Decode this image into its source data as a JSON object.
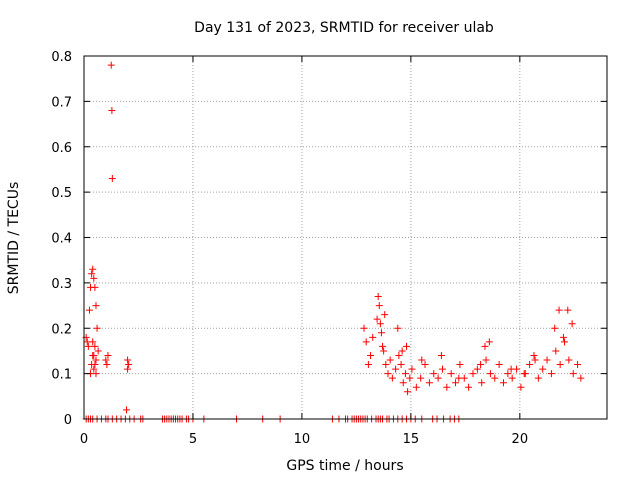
{
  "chart_data": {
    "type": "scatter",
    "title": "Day 131 of 2023, SRMTID for receiver ulab",
    "xlabel": "GPS time / hours",
    "ylabel": "SRMTID / TECUs",
    "xlim": [
      0,
      24
    ],
    "ylim": [
      0,
      0.8
    ],
    "xticks": [
      0,
      5,
      10,
      15,
      20
    ],
    "yticks": [
      0,
      0.1,
      0.2,
      0.3,
      0.4,
      0.5,
      0.6,
      0.7,
      0.8
    ],
    "grid": true,
    "marker": "+",
    "series": [
      {
        "name": "SRMTID",
        "color": "#ff0000",
        "x": [
          0.1,
          0.15,
          0.2,
          0.25,
          0.3,
          0.35,
          0.4,
          0.45,
          0.5,
          0.55,
          0.6,
          0.65,
          0.3,
          0.35,
          0.4,
          0.45,
          0.5,
          0.55,
          0.4,
          0.45,
          0.5,
          0.55,
          1.0,
          1.05,
          1.1,
          1.25,
          1.28,
          1.3,
          1.95,
          2.0,
          2.05,
          2.0,
          0.1,
          0.2,
          0.3,
          0.4,
          0.6,
          0.8,
          1.0,
          1.1,
          1.3,
          1.5,
          1.7,
          1.9,
          2.1,
          2.3,
          2.6,
          2.7,
          3.6,
          3.7,
          3.8,
          3.9,
          4.0,
          4.1,
          4.2,
          4.3,
          4.4,
          4.5,
          4.7,
          4.8,
          5.0,
          5.5,
          7.0,
          8.2,
          9.0,
          11.4,
          11.7,
          12.0,
          12.1,
          12.3,
          12.4,
          12.5,
          12.6,
          12.7,
          12.8,
          12.9,
          13.0,
          13.2,
          13.4,
          13.5,
          13.6,
          13.7,
          13.9,
          14.0,
          14.2,
          14.4,
          14.6,
          14.8,
          15.0,
          15.2,
          15.5,
          16.0,
          16.2,
          16.5,
          16.8,
          17.0,
          17.2,
          12.85,
          12.95,
          13.05,
          13.15,
          13.25,
          13.45,
          13.55,
          13.65,
          13.75,
          13.85,
          13.95,
          14.05,
          14.15,
          14.3,
          14.45,
          14.55,
          14.65,
          14.75,
          14.85,
          14.95,
          15.05,
          15.25,
          15.45,
          15.65,
          15.85,
          16.05,
          16.25,
          16.45,
          16.65,
          16.85,
          17.05,
          17.25,
          17.45,
          17.65,
          17.85,
          18.05,
          18.25,
          18.45,
          18.65,
          18.85,
          19.05,
          19.25,
          19.45,
          19.65,
          19.85,
          20.05,
          20.25,
          20.45,
          20.65,
          20.85,
          21.05,
          21.25,
          21.45,
          21.65,
          21.85,
          22.05,
          22.25,
          22.45,
          22.65,
          22.8,
          13.5,
          13.6,
          13.7,
          13.8,
          14.4,
          14.6,
          14.8,
          15.5,
          16.4,
          17.2,
          18.2,
          18.4,
          18.6,
          19.6,
          20.2,
          20.7,
          21.6,
          21.8,
          22.0,
          22.2,
          22.4
        ],
        "y": [
          0.18,
          0.17,
          0.16,
          0.24,
          0.29,
          0.32,
          0.33,
          0.31,
          0.29,
          0.25,
          0.2,
          0.15,
          0.1,
          0.12,
          0.14,
          0.11,
          0.16,
          0.13,
          0.17,
          0.14,
          0.12,
          0.1,
          0.13,
          0.12,
          0.14,
          0.78,
          0.68,
          0.53,
          0.02,
          0.13,
          0.12,
          0.11,
          0,
          0,
          0,
          0,
          0,
          0,
          0,
          0,
          0,
          0,
          0,
          0,
          0,
          0,
          0,
          0,
          0,
          0,
          0,
          0,
          0,
          0,
          0,
          0,
          0,
          0,
          0,
          0,
          0,
          0,
          0,
          0,
          0,
          0,
          0,
          0,
          0,
          0,
          0,
          0,
          0,
          0,
          0,
          0,
          0,
          0,
          0,
          0,
          0,
          0,
          0,
          0,
          0,
          0,
          0,
          0,
          0,
          0,
          0,
          0,
          0,
          0,
          0,
          0,
          0,
          0.2,
          0.17,
          0.12,
          0.14,
          0.18,
          0.22,
          0.25,
          0.19,
          0.15,
          0.12,
          0.1,
          0.13,
          0.09,
          0.11,
          0.14,
          0.12,
          0.08,
          0.1,
          0.06,
          0.09,
          0.11,
          0.07,
          0.09,
          0.12,
          0.08,
          0.1,
          0.09,
          0.11,
          0.07,
          0.1,
          0.08,
          0.12,
          0.09,
          0.07,
          0.1,
          0.11,
          0.08,
          0.13,
          0.1,
          0.09,
          0.12,
          0.08,
          0.1,
          0.09,
          0.11,
          0.07,
          0.1,
          0.12,
          0.14,
          0.09,
          0.11,
          0.13,
          0.1,
          0.15,
          0.12,
          0.17,
          0.13,
          0.1,
          0.12,
          0.09,
          0.27,
          0.21,
          0.16,
          0.23,
          0.2,
          0.15,
          0.16,
          0.13,
          0.14,
          0.09,
          0.12,
          0.16,
          0.17,
          0.11,
          0.1,
          0.13,
          0.2,
          0.24,
          0.18,
          0.24,
          0.21
        ]
      }
    ]
  }
}
